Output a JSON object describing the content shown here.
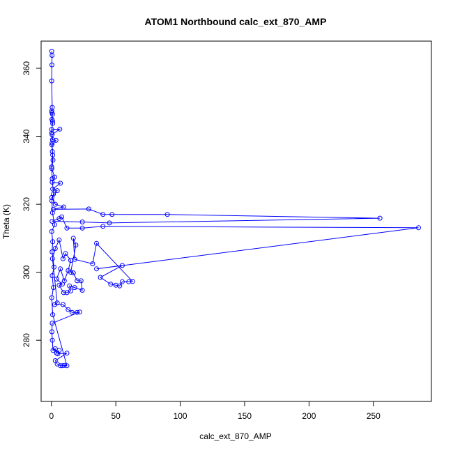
{
  "chart_data": {
    "type": "line",
    "title": "ATOM1 Northbound calc_ext_870_AMP",
    "xlabel": "calc_ext_870_AMP",
    "ylabel": "Theta (K)",
    "xlim": [
      -8,
      295
    ],
    "ylim": [
      262,
      368
    ],
    "xticks": [
      0,
      50,
      100,
      150,
      200,
      250
    ],
    "yticks": [
      280,
      300,
      320,
      340,
      360
    ],
    "series_color": "#0000ff",
    "marker": "open-circle",
    "grid": false,
    "legend": "none",
    "series": [
      {
        "points": [
          [
            0.3,
            365.0
          ],
          [
            0.5,
            363.8
          ],
          [
            0.4,
            361.0
          ],
          [
            0.2,
            356.3
          ],
          [
            0.6,
            348.5
          ],
          [
            0.3,
            347.5
          ],
          [
            0.8,
            346.5
          ],
          [
            0.4,
            345.0
          ],
          [
            1.0,
            343.8
          ],
          [
            0.2,
            342.0
          ],
          [
            6.5,
            342.1
          ],
          [
            0.5,
            340.5
          ],
          [
            0.9,
            339.0
          ],
          [
            3.5,
            338.8
          ],
          [
            0.4,
            337.5
          ],
          [
            0.7,
            335.5
          ],
          [
            1.2,
            333.0
          ],
          [
            0.3,
            330.5
          ],
          [
            2.5,
            328.0
          ],
          [
            0.6,
            326.5
          ],
          [
            7.0,
            326.2
          ],
          [
            1.0,
            324.5
          ],
          [
            4.5,
            324.0
          ],
          [
            0.3,
            322.0
          ],
          [
            3.0,
            320.0
          ],
          [
            9.5,
            319.2
          ],
          [
            1.5,
            318.5
          ],
          [
            29.0,
            318.6
          ],
          [
            40.0,
            317.0
          ],
          [
            47.0,
            317.0
          ],
          [
            90.0,
            317.0
          ],
          [
            255.0,
            315.9
          ],
          [
            45.0,
            314.5
          ],
          [
            24.0,
            314.8
          ],
          [
            0.5,
            315.0
          ],
          [
            6.0,
            315.8
          ],
          [
            8.0,
            316.3
          ],
          [
            12.0,
            313.0
          ],
          [
            24.0,
            313.0
          ],
          [
            40.0,
            313.5
          ],
          [
            285.0,
            313.1
          ],
          [
            35.0,
            301.0
          ],
          [
            55.0,
            302.0
          ],
          [
            38.0,
            298.5
          ],
          [
            46.0,
            296.5
          ],
          [
            50.0,
            296.2
          ],
          [
            53.0,
            296.0
          ],
          [
            55.0,
            297.2
          ],
          [
            60.0,
            297.2
          ],
          [
            63.0,
            297.3
          ],
          [
            35.0,
            308.5
          ],
          [
            32.0,
            302.5
          ],
          [
            18.0,
            303.8
          ],
          [
            17.0,
            310.0
          ],
          [
            19.0,
            308.0
          ],
          [
            15.0,
            300.0
          ],
          [
            17.0,
            299.8
          ],
          [
            20.0,
            297.5
          ],
          [
            23.0,
            297.5
          ],
          [
            24.0,
            294.7
          ],
          [
            18.0,
            295.5
          ],
          [
            14.0,
            296.0
          ],
          [
            15.0,
            294.5
          ],
          [
            12.0,
            294.0
          ],
          [
            9.5,
            294.0
          ],
          [
            6.0,
            296.2
          ],
          [
            8.5,
            296.5
          ],
          [
            4.0,
            298.0
          ],
          [
            7.0,
            301.0
          ],
          [
            10.0,
            297.5
          ],
          [
            13.0,
            300.5
          ],
          [
            15.0,
            303.5
          ],
          [
            11.0,
            305.5
          ],
          [
            9.0,
            304.0
          ],
          [
            6.0,
            309.5
          ],
          [
            3.0,
            307.0
          ],
          [
            0.8,
            304.0
          ],
          [
            4.5,
            291.0
          ],
          [
            2.5,
            290.5
          ],
          [
            9.0,
            290.5
          ],
          [
            13.0,
            289.0
          ],
          [
            16.0,
            288.2
          ],
          [
            20.0,
            288.2
          ],
          [
            22.0,
            288.3
          ],
          [
            0.6,
            285.0
          ],
          [
            0.4,
            282.5
          ],
          [
            0.7,
            280.0
          ],
          [
            1.2,
            277.0
          ],
          [
            3.0,
            277.5
          ],
          [
            4.0,
            276.2
          ],
          [
            6.0,
            277.0
          ],
          [
            5.0,
            276.0
          ],
          [
            12.0,
            276.2
          ],
          [
            3.0,
            274.0
          ],
          [
            4.5,
            273.0
          ],
          [
            7.0,
            272.5
          ],
          [
            8.5,
            272.5
          ],
          [
            10.0,
            272.6
          ],
          [
            12.0,
            272.5
          ],
          [
            1.0,
            287.5
          ],
          [
            0.3,
            292.5
          ],
          [
            1.5,
            295.5
          ],
          [
            0.6,
            299.0
          ],
          [
            2.0,
            301.5
          ],
          [
            0.5,
            306.0
          ],
          [
            1.0,
            309.0
          ],
          [
            0.3,
            312.0
          ],
          [
            2.5,
            314.0
          ],
          [
            0.8,
            317.5
          ],
          [
            0.4,
            321.0
          ],
          [
            1.5,
            323.0
          ],
          [
            0.6,
            327.5
          ],
          [
            0.2,
            331.0
          ],
          [
            1.0,
            334.5
          ],
          [
            0.5,
            338.0
          ],
          [
            0.3,
            341.0
          ],
          [
            0.8,
            344.5
          ],
          [
            0.4,
            347.0
          ]
        ]
      }
    ]
  }
}
